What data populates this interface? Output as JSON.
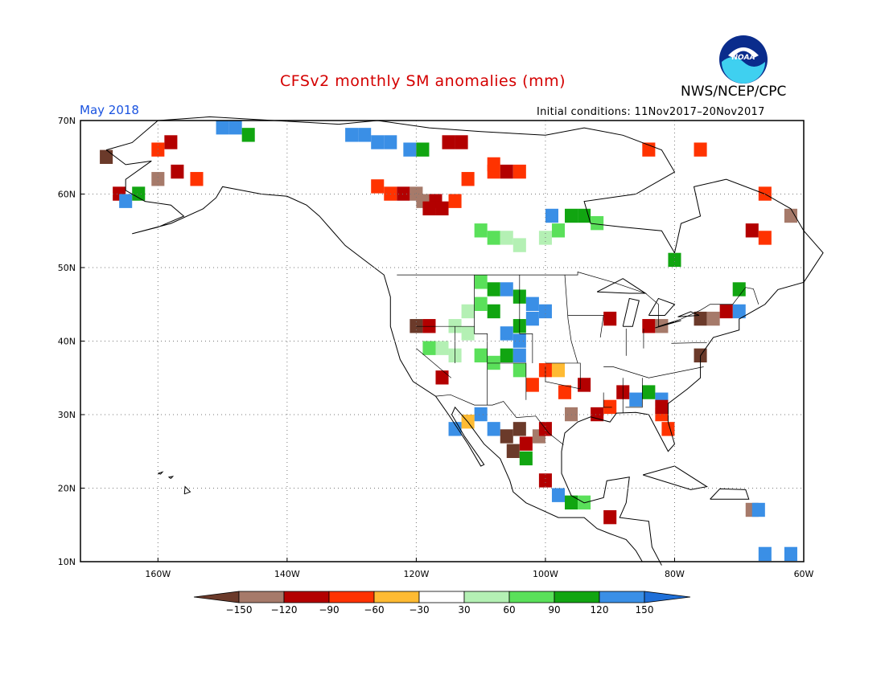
{
  "title": "CFSv2 monthly SM anomalies (mm)",
  "organization": "NWS/NCEP/CPC",
  "logo_text": "NOAA",
  "valid_month": "May 2018",
  "initial_conditions": "Initial conditions: 11Nov2017–20Nov2017",
  "map": {
    "lon_range": [
      -172,
      -60
    ],
    "lat_range": [
      10,
      70
    ],
    "lat_ticks": [
      "10N",
      "20N",
      "30N",
      "40N",
      "50N",
      "60N",
      "70N"
    ],
    "lon_ticks": [
      "160W",
      "140W",
      "120W",
      "100W",
      "80W",
      "60W"
    ],
    "gridlines": "dotted"
  },
  "colorbar": {
    "labels": [
      "−150",
      "−120",
      "−90",
      "−60",
      "−30",
      "30",
      "60",
      "90",
      "120",
      "150"
    ],
    "colors": [
      "#6b3a2a",
      "#a67a6a",
      "#b30000",
      "#ff3300",
      "#ffbb33",
      "#ffffff",
      "#b4f0b4",
      "#5ae05a",
      "#11a511",
      "#3a8fe6",
      "#1f6fd8"
    ]
  },
  "chart_data": {
    "type": "heatmap",
    "title": "CFSv2 monthly SM anomalies (mm)",
    "units": "mm",
    "cells": [
      {
        "lon": -150,
        "lat": 69,
        "class": "150"
      },
      {
        "lon": -148,
        "lat": 69,
        "class": "150"
      },
      {
        "lon": -146,
        "lat": 68,
        "class": "120"
      },
      {
        "lon": -130,
        "lat": 68,
        "class": "150"
      },
      {
        "lon": -128,
        "lat": 68,
        "class": "150"
      },
      {
        "lon": -126,
        "lat": 67,
        "class": "150"
      },
      {
        "lon": -124,
        "lat": 67,
        "class": "150"
      },
      {
        "lon": -121,
        "lat": 66,
        "class": "150"
      },
      {
        "lon": -119,
        "lat": 66,
        "class": "120"
      },
      {
        "lon": -158,
        "lat": 67,
        "class": "-90"
      },
      {
        "lon": -160,
        "lat": 66,
        "class": "-60"
      },
      {
        "lon": -168,
        "lat": 65,
        "class": "-150"
      },
      {
        "lon": -160,
        "lat": 62,
        "class": "-120"
      },
      {
        "lon": -157,
        "lat": 63,
        "class": "-90"
      },
      {
        "lon": -154,
        "lat": 62,
        "class": "-60"
      },
      {
        "lon": -166,
        "lat": 60,
        "class": "-90"
      },
      {
        "lon": -165,
        "lat": 59,
        "class": "150"
      },
      {
        "lon": -163,
        "lat": 60,
        "class": "120"
      },
      {
        "lon": -126,
        "lat": 61,
        "class": "-60"
      },
      {
        "lon": -124,
        "lat": 60,
        "class": "-60"
      },
      {
        "lon": -122,
        "lat": 60,
        "class": "-90"
      },
      {
        "lon": -120,
        "lat": 60,
        "class": "-120"
      },
      {
        "lon": -119,
        "lat": 59,
        "class": "-120"
      },
      {
        "lon": -117,
        "lat": 59,
        "class": "-90"
      },
      {
        "lon": -118,
        "lat": 58,
        "class": "-90"
      },
      {
        "lon": -116,
        "lat": 58,
        "class": "-90"
      },
      {
        "lon": -114,
        "lat": 59,
        "class": "-60"
      },
      {
        "lon": -112,
        "lat": 62,
        "class": "-60"
      },
      {
        "lon": -108,
        "lat": 63,
        "class": "-60"
      },
      {
        "lon": -106,
        "lat": 63,
        "class": "-90"
      },
      {
        "lon": -108,
        "lat": 64,
        "class": "-60"
      },
      {
        "lon": -104,
        "lat": 63,
        "class": "-60"
      },
      {
        "lon": -115,
        "lat": 67,
        "class": "-90"
      },
      {
        "lon": -113,
        "lat": 67,
        "class": "-90"
      },
      {
        "lon": -110,
        "lat": 55,
        "class": "90"
      },
      {
        "lon": -108,
        "lat": 54,
        "class": "90"
      },
      {
        "lon": -106,
        "lat": 54,
        "class": "60"
      },
      {
        "lon": -104,
        "lat": 53,
        "class": "60"
      },
      {
        "lon": -100,
        "lat": 54,
        "class": "60"
      },
      {
        "lon": -98,
        "lat": 55,
        "class": "90"
      },
      {
        "lon": -96,
        "lat": 57,
        "class": "120"
      },
      {
        "lon": -94,
        "lat": 57,
        "class": "120"
      },
      {
        "lon": -92,
        "lat": 56,
        "class": "90"
      },
      {
        "lon": -99,
        "lat": 57,
        "class": "150"
      },
      {
        "lon": -110,
        "lat": 48,
        "class": "90"
      },
      {
        "lon": -108,
        "lat": 47,
        "class": "120"
      },
      {
        "lon": -106,
        "lat": 47,
        "class": "150"
      },
      {
        "lon": -104,
        "lat": 46,
        "class": "120"
      },
      {
        "lon": -102,
        "lat": 45,
        "class": "150"
      },
      {
        "lon": -100,
        "lat": 44,
        "class": "150"
      },
      {
        "lon": -102,
        "lat": 43,
        "class": "150"
      },
      {
        "lon": -104,
        "lat": 42,
        "class": "120"
      },
      {
        "lon": -106,
        "lat": 41,
        "class": "150"
      },
      {
        "lon": -104,
        "lat": 40,
        "class": "150"
      },
      {
        "lon": -108,
        "lat": 44,
        "class": "120"
      },
      {
        "lon": -110,
        "lat": 45,
        "class": "90"
      },
      {
        "lon": -112,
        "lat": 44,
        "class": "60"
      },
      {
        "lon": -114,
        "lat": 42,
        "class": "60"
      },
      {
        "lon": -112,
        "lat": 41,
        "class": "60"
      },
      {
        "lon": -116,
        "lat": 39,
        "class": "60"
      },
      {
        "lon": -118,
        "lat": 39,
        "class": "90"
      },
      {
        "lon": -114,
        "lat": 38,
        "class": "60"
      },
      {
        "lon": -110,
        "lat": 38,
        "class": "90"
      },
      {
        "lon": -108,
        "lat": 37,
        "class": "90"
      },
      {
        "lon": -106,
        "lat": 38,
        "class": "120"
      },
      {
        "lon": -104,
        "lat": 38,
        "class": "150"
      },
      {
        "lon": -104,
        "lat": 36,
        "class": "90"
      },
      {
        "lon": -100,
        "lat": 36,
        "class": "-60"
      },
      {
        "lon": -98,
        "lat": 36,
        "class": "-30"
      },
      {
        "lon": -102,
        "lat": 34,
        "class": "-60"
      },
      {
        "lon": -97,
        "lat": 33,
        "class": "-60"
      },
      {
        "lon": -94,
        "lat": 34,
        "class": "-90"
      },
      {
        "lon": -88,
        "lat": 33,
        "class": "-90"
      },
      {
        "lon": -86,
        "lat": 32,
        "class": "150"
      },
      {
        "lon": -84,
        "lat": 33,
        "class": "120"
      },
      {
        "lon": -82,
        "lat": 32,
        "class": "150"
      },
      {
        "lon": -82,
        "lat": 30,
        "class": "-60"
      },
      {
        "lon": -81,
        "lat": 28,
        "class": "-60"
      },
      {
        "lon": -82,
        "lat": 31,
        "class": "-90"
      },
      {
        "lon": -96,
        "lat": 30,
        "class": "-120"
      },
      {
        "lon": -92,
        "lat": 30,
        "class": "-90"
      },
      {
        "lon": -90,
        "lat": 31,
        "class": "-60"
      },
      {
        "lon": -110,
        "lat": 30,
        "class": "150"
      },
      {
        "lon": -108,
        "lat": 28,
        "class": "150"
      },
      {
        "lon": -104,
        "lat": 28,
        "class": "-150"
      },
      {
        "lon": -106,
        "lat": 27,
        "class": "-150"
      },
      {
        "lon": -105,
        "lat": 25,
        "class": "-150"
      },
      {
        "lon": -103,
        "lat": 26,
        "class": "-90"
      },
      {
        "lon": -101,
        "lat": 27,
        "class": "-120"
      },
      {
        "lon": -100,
        "lat": 28,
        "class": "-90"
      },
      {
        "lon": -103,
        "lat": 24,
        "class": "120"
      },
      {
        "lon": -100,
        "lat": 21,
        "class": "-90"
      },
      {
        "lon": -98,
        "lat": 19,
        "class": "150"
      },
      {
        "lon": -96,
        "lat": 18,
        "class": "120"
      },
      {
        "lon": -94,
        "lat": 18,
        "class": "90"
      },
      {
        "lon": -90,
        "lat": 16,
        "class": "-90"
      },
      {
        "lon": -112,
        "lat": 29,
        "class": "-30"
      },
      {
        "lon": -114,
        "lat": 28,
        "class": "150"
      },
      {
        "lon": -116,
        "lat": 35,
        "class": "-90"
      },
      {
        "lon": -120,
        "lat": 42,
        "class": "-150"
      },
      {
        "lon": -118,
        "lat": 42,
        "class": "-90"
      },
      {
        "lon": -90,
        "lat": 43,
        "class": "-90"
      },
      {
        "lon": -84,
        "lat": 42,
        "class": "-90"
      },
      {
        "lon": -82,
        "lat": 42,
        "class": "-120"
      },
      {
        "lon": -76,
        "lat": 43,
        "class": "-150"
      },
      {
        "lon": -74,
        "lat": 43,
        "class": "-120"
      },
      {
        "lon": -70,
        "lat": 44,
        "class": "150"
      },
      {
        "lon": -72,
        "lat": 44,
        "class": "-90"
      },
      {
        "lon": -76,
        "lat": 38,
        "class": "-150"
      },
      {
        "lon": -66,
        "lat": 60,
        "class": "-60"
      },
      {
        "lon": -62,
        "lat": 57,
        "class": "-120"
      },
      {
        "lon": -68,
        "lat": 55,
        "class": "-90"
      },
      {
        "lon": -66,
        "lat": 54,
        "class": "-60"
      },
      {
        "lon": -80,
        "lat": 51,
        "class": "120"
      },
      {
        "lon": -70,
        "lat": 47,
        "class": "120"
      },
      {
        "lon": -84,
        "lat": 66,
        "class": "-60"
      },
      {
        "lon": -76,
        "lat": 66,
        "class": "-60"
      },
      {
        "lon": -68,
        "lat": 17,
        "class": "-120"
      },
      {
        "lon": -67,
        "lat": 17,
        "class": "150"
      },
      {
        "lon": -62,
        "lat": 11,
        "class": "150"
      },
      {
        "lon": -66,
        "lat": 11,
        "class": "150"
      }
    ]
  }
}
